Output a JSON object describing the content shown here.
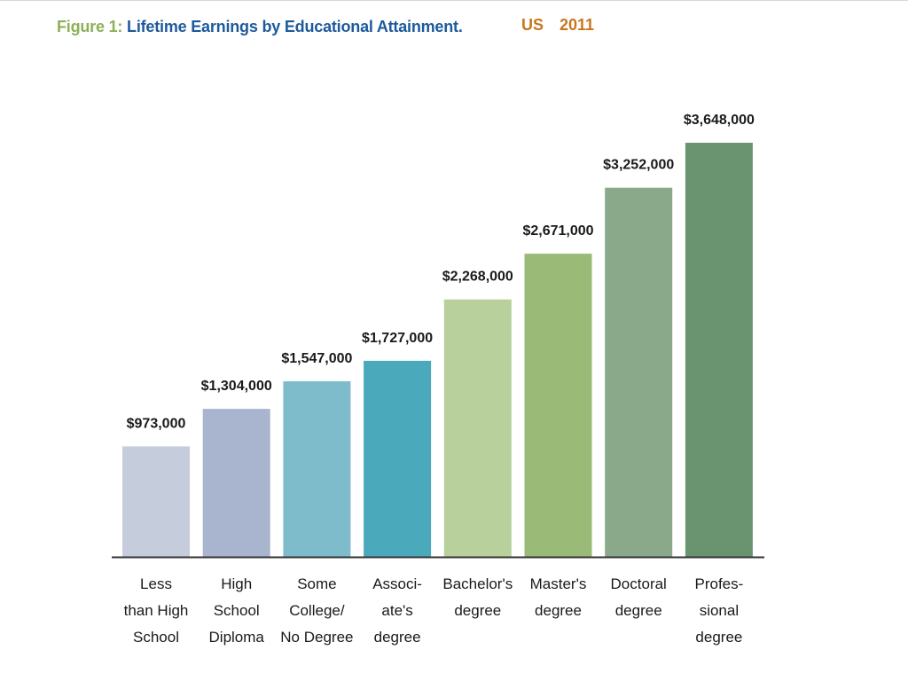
{
  "figure": {
    "label": "Figure 1:",
    "title": "Lifetime Earnings by Educational Attainment.",
    "subtitle": "US  2011"
  },
  "chart_data": {
    "type": "bar",
    "title": "Lifetime Earnings by Educational Attainment.",
    "xlabel": "",
    "ylabel": "",
    "ylim": [
      0,
      3648000
    ],
    "grid": false,
    "categories": [
      "Less than High School",
      "High School Diploma",
      "Some College/ No Degree",
      "Associ- ate's degree",
      "Bachelor's degree",
      "Master's degree",
      "Doctoral degree",
      "Profes- sional degree"
    ],
    "category_lines": [
      [
        "Less",
        "than High",
        "School"
      ],
      [
        "High",
        "School",
        "Diploma"
      ],
      [
        "Some",
        "College/",
        "No Degree"
      ],
      [
        "Associ-",
        "ate's",
        "degree"
      ],
      [
        "Bachelor's",
        "degree"
      ],
      [
        "Master's",
        "degree"
      ],
      [
        "Doctoral",
        "degree"
      ],
      [
        "Profes-",
        "sional",
        "degree"
      ]
    ],
    "values": [
      973000,
      1304000,
      1547000,
      1727000,
      2268000,
      2671000,
      3252000,
      3648000
    ],
    "data_labels": [
      "$973,000",
      "$1,304,000",
      "$1,547,000",
      "$1,727,000",
      "$2,268,000",
      "$2,671,000",
      "$3,252,000",
      "$3,648,000"
    ],
    "colors": [
      "#c5ccdc",
      "#a9b5cf",
      "#7ebccc",
      "#4aa9bb",
      "#b8d09c",
      "#9aba78",
      "#8aa88a",
      "#6a9470"
    ],
    "axis_color": "#333333"
  }
}
